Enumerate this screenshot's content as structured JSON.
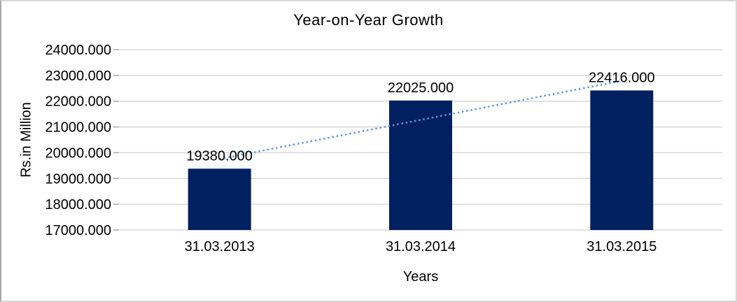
{
  "chart_data": {
    "type": "bar",
    "title": "Year-on-Year Growth",
    "xlabel": "Years",
    "ylabel": "Rs.in Million",
    "categories": [
      "31.03.2013",
      "31.03.2014",
      "31.03.2015"
    ],
    "values": [
      19380.0,
      22025.0,
      22416.0
    ],
    "data_labels": [
      "19380.000",
      "22025.000",
      "22416.000"
    ],
    "ylim": [
      17000,
      24000
    ],
    "ytick_step": 1000,
    "ytick_labels": [
      "17000.000",
      "18000.000",
      "19000.000",
      "20000.000",
      "21000.000",
      "22000.000",
      "23000.000",
      "24000.000"
    ],
    "grid": true,
    "legend": "none",
    "trendline": {
      "type": "linear",
      "style": "dotted"
    },
    "colors": {
      "bar": "#002060",
      "trendline": "#5b9bd5",
      "gridline": "#d9d9d9",
      "tick_mark": "#a6a6a6",
      "text": "#000000",
      "frame": "#d8d8d8"
    }
  }
}
